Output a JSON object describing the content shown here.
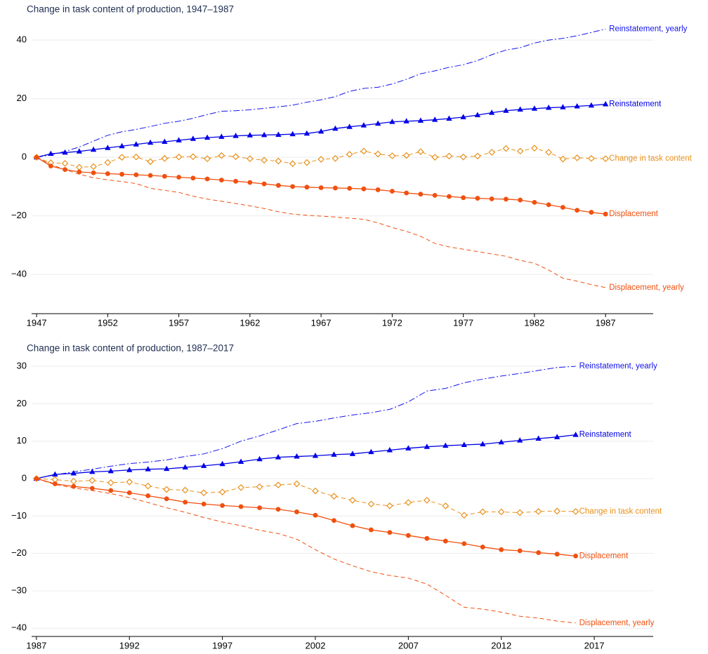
{
  "chart_data": [
    {
      "type": "line",
      "title": "Change in task content of production, 1947–1987",
      "x": [
        1947,
        1948,
        1949,
        1950,
        1951,
        1952,
        1953,
        1954,
        1955,
        1956,
        1957,
        1958,
        1959,
        1960,
        1961,
        1962,
        1963,
        1964,
        1965,
        1966,
        1967,
        1968,
        1969,
        1970,
        1971,
        1972,
        1973,
        1974,
        1975,
        1976,
        1977,
        1978,
        1979,
        1980,
        1981,
        1982,
        1983,
        1984,
        1985,
        1986,
        1987
      ],
      "xlim": [
        1946.65,
        1990.35
      ],
      "xticks": [
        1947,
        1952,
        1957,
        1962,
        1967,
        1972,
        1977,
        1982,
        1987
      ],
      "ylim": [
        -53.4,
        46.5
      ],
      "yticks": [
        {
          "value": -40,
          "label": "−40"
        },
        {
          "value": -20,
          "label": "−20"
        },
        0,
        20,
        40
      ],
      "grid": true,
      "series": [
        {
          "name": "Reinstatement, yearly",
          "color": "#1414f0",
          "dash": "dashdot",
          "marker": null,
          "values": [
            0,
            0.8,
            2,
            3.5,
            5.5,
            7.5,
            8.7,
            9.5,
            10.5,
            11.6,
            12.3,
            13.3,
            14.6,
            15.7,
            15.9,
            16.2,
            16.7,
            17.2,
            17.8,
            18.8,
            19.6,
            20.7,
            22.5,
            23.5,
            23.9,
            25.0,
            26.6,
            28.5,
            29.5,
            30.7,
            31.6,
            33.0,
            35.0,
            36.6,
            37.4,
            39.0,
            40.0,
            40.6,
            41.5,
            42.6,
            43.8
          ]
        },
        {
          "name": "Reinstatement",
          "color": "#0000e6",
          "dash": "solid",
          "marker": "triangle",
          "values": [
            0,
            1.2,
            1.6,
            2.0,
            2.6,
            3.2,
            3.8,
            4.4,
            5.0,
            5.3,
            5.8,
            6.3,
            6.7,
            7.0,
            7.3,
            7.5,
            7.6,
            7.7,
            7.9,
            8.1,
            8.8,
            9.8,
            10.4,
            10.9,
            11.5,
            12.1,
            12.3,
            12.5,
            12.8,
            13.2,
            13.7,
            14.4,
            15.2,
            15.9,
            16.3,
            16.6,
            16.9,
            17.1,
            17.4,
            17.7,
            18.1
          ]
        },
        {
          "name": "Change in task content",
          "color": "#e8901a",
          "dash": "dashed",
          "marker": "diamond-open",
          "values": [
            0,
            -1.9,
            -2.1,
            -3.4,
            -3.2,
            -1.8,
            0,
            0.1,
            -1.5,
            -0.4,
            0.1,
            0.2,
            -0.5,
            0.6,
            0.2,
            -0.5,
            -1.0,
            -1.3,
            -2.2,
            -1.8,
            -0.7,
            -0.4,
            1.0,
            2.1,
            1.1,
            0.5,
            0.6,
            1.9,
            0,
            0.4,
            0.1,
            0.4,
            1.7,
            3.0,
            2.1,
            3.1,
            1.7,
            -0.6,
            -0.2,
            -0.4,
            -0.5
          ]
        },
        {
          "name": "Displacement",
          "color": "#f0500f",
          "dash": "solid",
          "marker": "circle",
          "values": [
            0,
            -3.0,
            -4.2,
            -5.0,
            -5.3,
            -5.6,
            -5.8,
            -6.0,
            -6.2,
            -6.5,
            -6.8,
            -7.1,
            -7.4,
            -7.8,
            -8.2,
            -8.6,
            -9.1,
            -9.6,
            -10.0,
            -10.2,
            -10.4,
            -10.5,
            -10.6,
            -10.8,
            -11.1,
            -11.6,
            -12.2,
            -12.6,
            -13.0,
            -13.4,
            -13.8,
            -14.0,
            -14.2,
            -14.3,
            -14.6,
            -15.4,
            -16.2,
            -17.1,
            -18.1,
            -18.8,
            -19.4
          ]
        },
        {
          "name": "Displacement, yearly",
          "color": "#f0500f",
          "dash": "dashed",
          "marker": null,
          "values": [
            0,
            -2.5,
            -4.2,
            -5.8,
            -7.0,
            -7.7,
            -8.3,
            -9.0,
            -10.6,
            -11.3,
            -12.0,
            -13.3,
            -14.3,
            -15.0,
            -15.8,
            -16.6,
            -17.5,
            -18.6,
            -19.4,
            -19.8,
            -20.1,
            -20.4,
            -20.8,
            -21.2,
            -22.4,
            -24.0,
            -25.3,
            -27.0,
            -29.4,
            -30.6,
            -31.4,
            -32.2,
            -33.0,
            -33.8,
            -35.2,
            -36.2,
            -38.5,
            -41.3,
            -42.3,
            -43.5,
            -44.5
          ]
        }
      ]
    },
    {
      "type": "line",
      "title": "Change in task content of production, 1987–2017",
      "x": [
        1987,
        1988,
        1989,
        1990,
        1991,
        1992,
        1993,
        1994,
        1995,
        1996,
        1997,
        1998,
        1999,
        2000,
        2001,
        2002,
        2003,
        2004,
        2005,
        2006,
        2007,
        2008,
        2009,
        2010,
        2011,
        2012,
        2013,
        2014,
        2015,
        2016
      ],
      "xlim": [
        1986.74,
        2020.17
      ],
      "xticks": [
        1987,
        1992,
        1997,
        2002,
        2007,
        2012,
        2017
      ],
      "ylim": [
        -42.2,
        33.2
      ],
      "yticks": [
        {
          "value": -40,
          "label": "−40"
        },
        {
          "value": -30,
          "label": "−30"
        },
        {
          "value": -20,
          "label": "−20"
        },
        {
          "value": -10,
          "label": "−10"
        },
        0,
        10,
        20,
        30
      ],
      "grid": true,
      "series": [
        {
          "name": "Reinstatement, yearly",
          "color": "#1414f0",
          "dash": "dashdot",
          "marker": null,
          "values": [
            0,
            1,
            1.8,
            2.5,
            3.3,
            4.0,
            4.4,
            5.0,
            5.9,
            6.6,
            8.0,
            10.0,
            11.4,
            13.0,
            14.7,
            15.3,
            16.2,
            17.0,
            17.6,
            18.5,
            20.5,
            23.4,
            24.1,
            25.6,
            26.6,
            27.4,
            28.1,
            28.9,
            29.7,
            30.0
          ]
        },
        {
          "name": "Reinstatement",
          "color": "#0000e6",
          "dash": "solid",
          "marker": "triangle",
          "values": [
            0,
            1.1,
            1.4,
            1.8,
            2.0,
            2.3,
            2.5,
            2.6,
            3.0,
            3.4,
            3.9,
            4.5,
            5.2,
            5.7,
            5.9,
            6.1,
            6.4,
            6.6,
            7.1,
            7.6,
            8.1,
            8.5,
            8.8,
            9.0,
            9.2,
            9.7,
            10.2,
            10.7,
            11.1,
            11.7
          ]
        },
        {
          "name": "Change in task content",
          "color": "#e8901a",
          "dash": "dashed",
          "marker": "diamond-open",
          "values": [
            0,
            -0.3,
            -0.7,
            -0.5,
            -1.1,
            -0.9,
            -2.0,
            -2.9,
            -3.1,
            -3.8,
            -3.6,
            -2.4,
            -2.2,
            -1.7,
            -1.4,
            -3.3,
            -4.7,
            -5.8,
            -6.8,
            -7.3,
            -6.4,
            -5.8,
            -7.3,
            -9.8,
            -8.9,
            -8.9,
            -9.1,
            -8.8,
            -8.7,
            -8.8
          ]
        },
        {
          "name": "Displacement",
          "color": "#f0500f",
          "dash": "solid",
          "marker": "circle",
          "values": [
            0,
            -1.4,
            -2.1,
            -2.6,
            -3.2,
            -3.8,
            -4.6,
            -5.4,
            -6.3,
            -6.8,
            -7.2,
            -7.5,
            -7.8,
            -8.2,
            -8.9,
            -9.8,
            -11.2,
            -12.6,
            -13.7,
            -14.4,
            -15.2,
            -16.0,
            -16.7,
            -17.4,
            -18.3,
            -19.0,
            -19.3,
            -19.8,
            -20.2,
            -20.7
          ]
        },
        {
          "name": "Displacement, yearly",
          "color": "#f0500f",
          "dash": "dashed",
          "marker": null,
          "values": [
            0,
            -1.6,
            -2.5,
            -3.2,
            -4.0,
            -5.1,
            -6.4,
            -7.8,
            -9.0,
            -10.4,
            -11.6,
            -12.6,
            -13.8,
            -14.7,
            -16.2,
            -19.0,
            -21.5,
            -23.3,
            -24.9,
            -25.9,
            -26.6,
            -28.2,
            -31.2,
            -34.4,
            -34.9,
            -35.7,
            -36.8,
            -37.3,
            -38.1,
            -38.6
          ]
        }
      ]
    }
  ]
}
